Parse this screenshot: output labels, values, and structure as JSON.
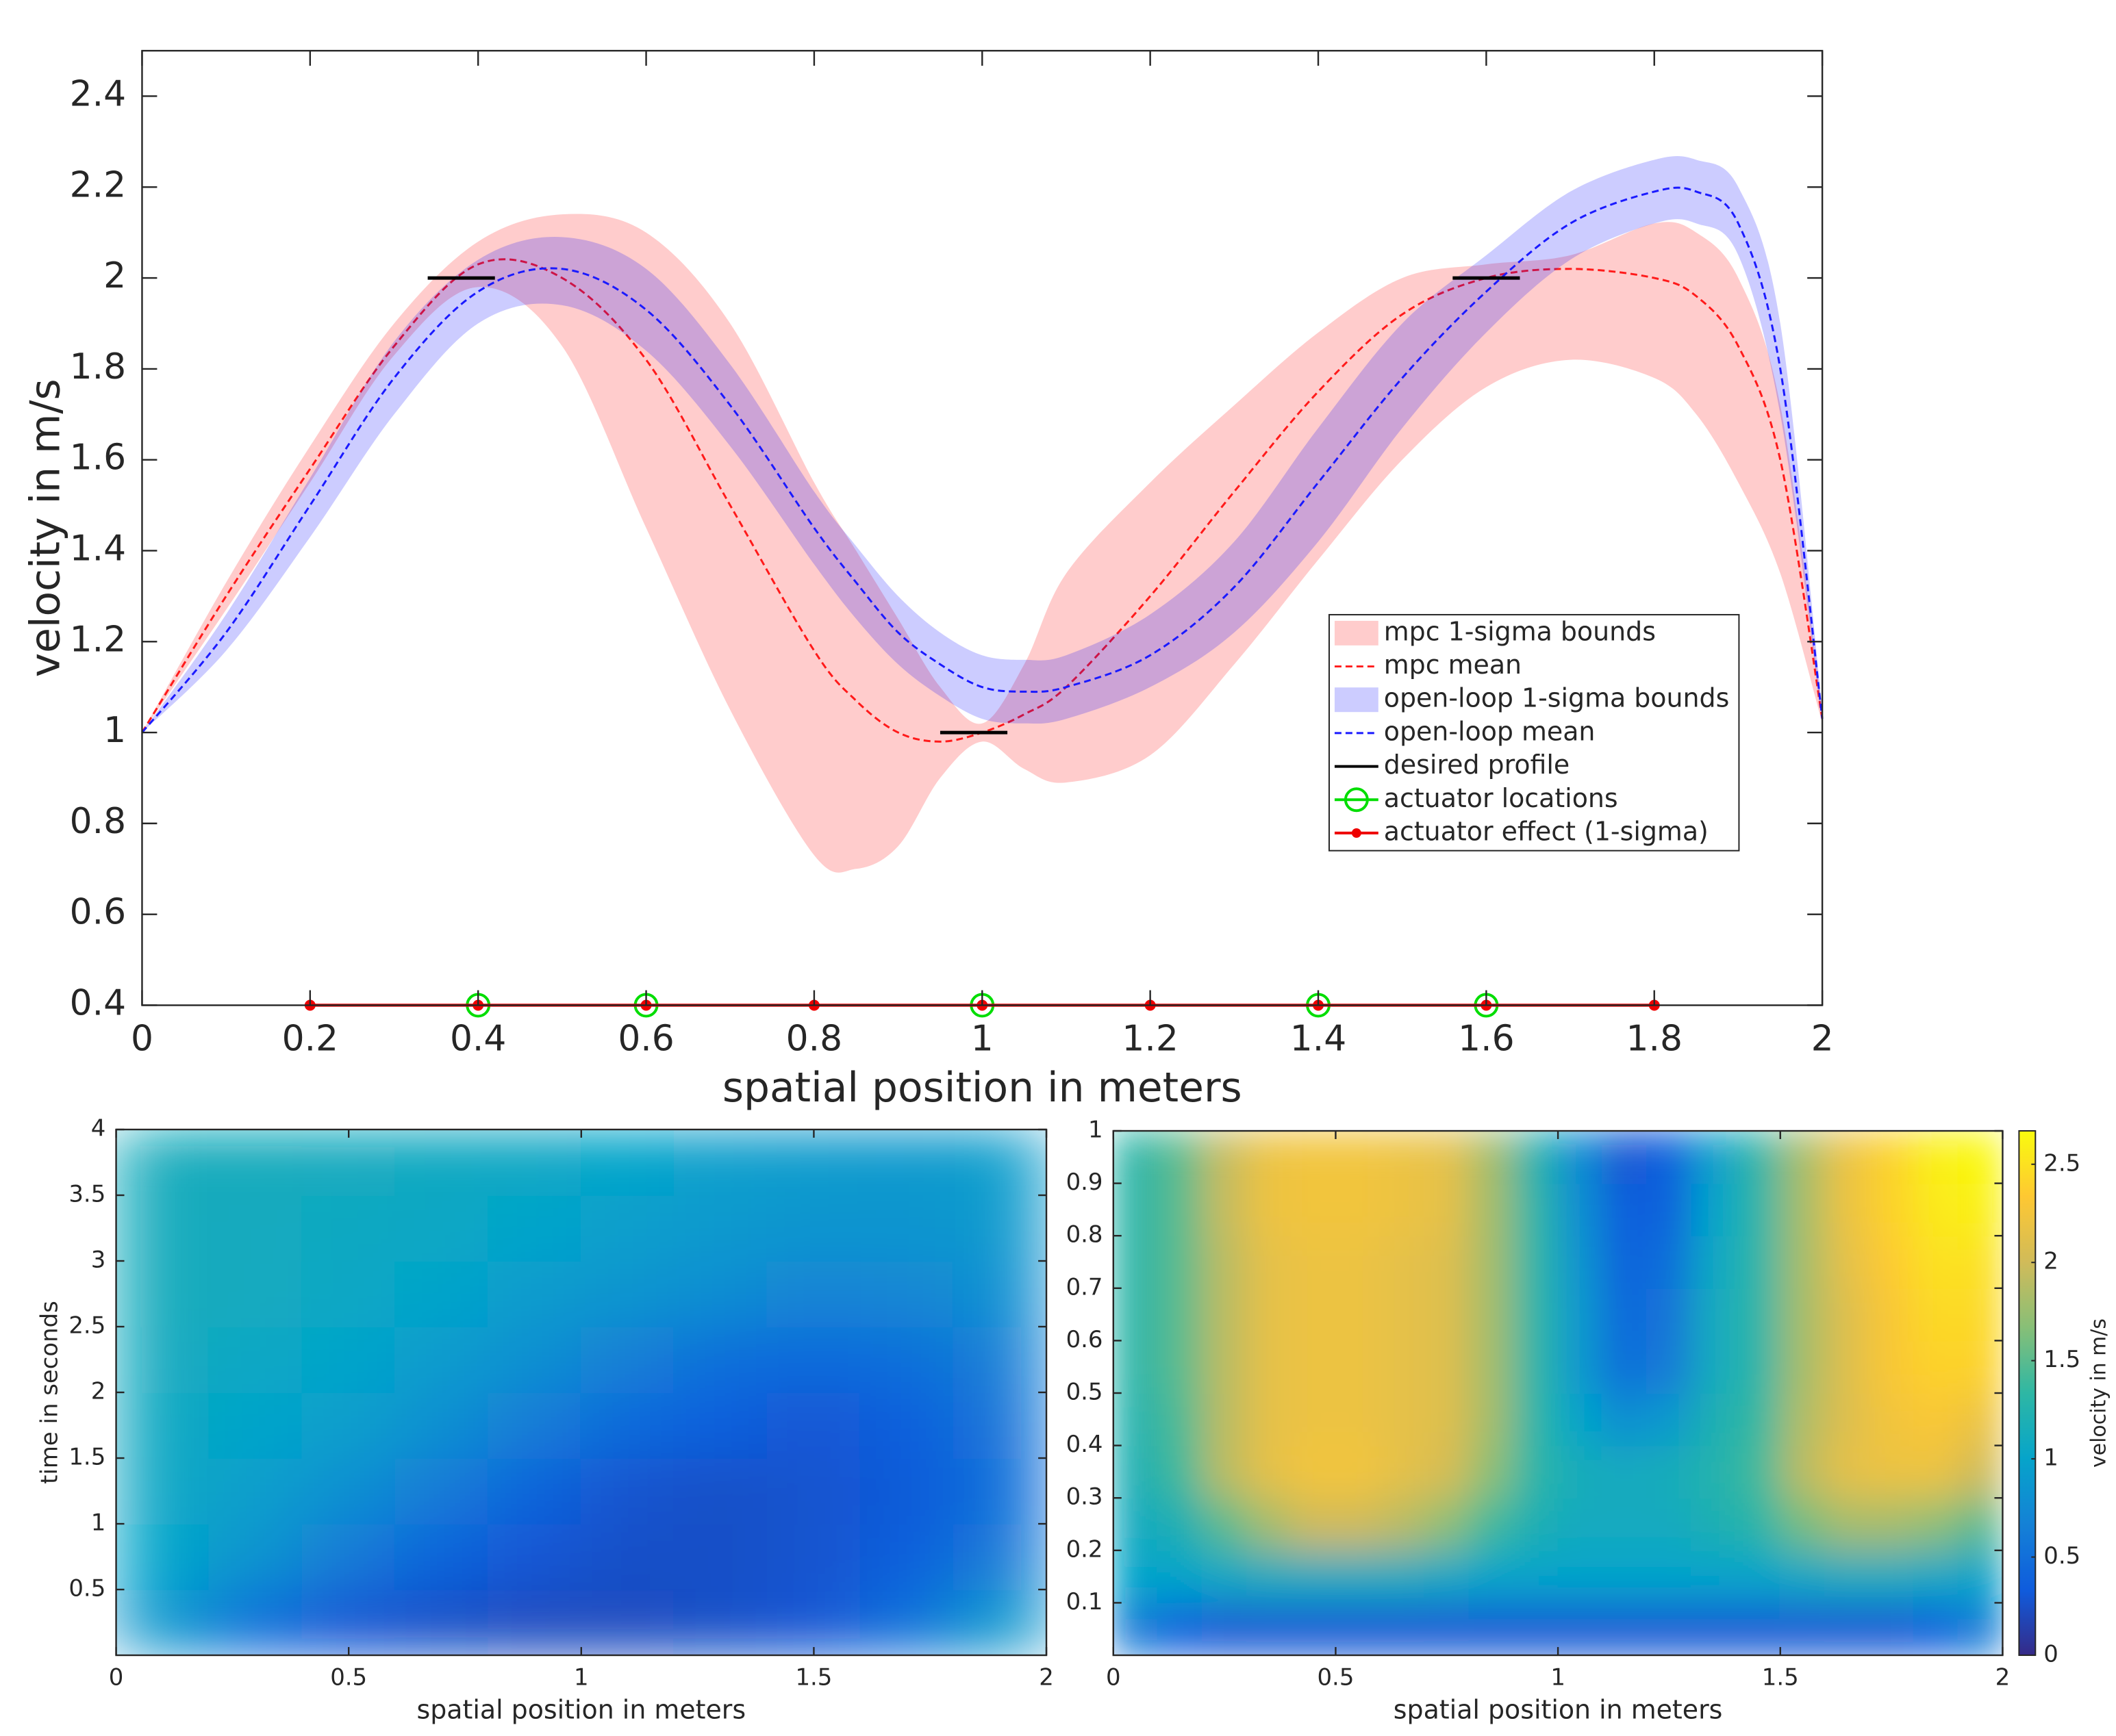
{
  "chart_data": [
    {
      "type": "line",
      "xlabel": "spatial position in meters",
      "ylabel": "velocity in m/s",
      "xlim": [
        0,
        2
      ],
      "ylim": [
        0.4,
        2.5
      ],
      "xticks": [
        0,
        0.2,
        0.4,
        0.6,
        0.8,
        1,
        1.2,
        1.4,
        1.6,
        1.8,
        2
      ],
      "yticks": [
        0.4,
        0.6,
        0.8,
        1,
        1.2,
        1.4,
        1.6,
        1.8,
        2,
        2.2,
        2.4
      ],
      "grid": false,
      "legend": "east",
      "x": [
        0,
        0.1,
        0.2,
        0.3,
        0.4,
        0.5,
        0.6,
        0.7,
        0.8,
        0.85,
        0.9,
        0.95,
        1,
        1.05,
        1.1,
        1.2,
        1.3,
        1.4,
        1.5,
        1.6,
        1.7,
        1.8,
        1.85,
        1.9,
        1.95,
        2
      ],
      "series": [
        {
          "name": "mpc 1-sigma bounds",
          "kind": "band",
          "color": "#ff0000",
          "alpha": 0.2,
          "lower": [
            1.0,
            1.27,
            1.55,
            1.83,
            1.98,
            1.85,
            1.45,
            1.05,
            0.73,
            0.7,
            0.75,
            0.9,
            0.98,
            0.92,
            0.89,
            0.95,
            1.15,
            1.38,
            1.6,
            1.76,
            1.82,
            1.78,
            1.7,
            1.55,
            1.35,
            1.02
          ],
          "upper": [
            1.0,
            1.33,
            1.63,
            1.9,
            2.08,
            2.14,
            2.1,
            1.9,
            1.55,
            1.4,
            1.25,
            1.1,
            1.02,
            1.15,
            1.35,
            1.55,
            1.72,
            1.88,
            2.0,
            2.03,
            2.05,
            2.12,
            2.1,
            2.0,
            1.72,
            1.05
          ]
        },
        {
          "name": "mpc mean",
          "kind": "line",
          "style": "dashed",
          "color": "#ff1a1a",
          "values": [
            1.0,
            1.3,
            1.58,
            1.85,
            2.03,
            2.0,
            1.82,
            1.5,
            1.18,
            1.07,
            1.0,
            0.98,
            1.0,
            1.04,
            1.1,
            1.3,
            1.53,
            1.75,
            1.92,
            2.0,
            2.02,
            2.0,
            1.96,
            1.85,
            1.6,
            1.03
          ]
        },
        {
          "name": "open-loop 1-sigma bounds",
          "kind": "band",
          "color": "#0000ff",
          "alpha": 0.2,
          "lower": [
            1.0,
            1.18,
            1.43,
            1.7,
            1.9,
            1.94,
            1.84,
            1.63,
            1.37,
            1.25,
            1.15,
            1.08,
            1.03,
            1.02,
            1.03,
            1.1,
            1.22,
            1.42,
            1.67,
            1.88,
            2.04,
            2.12,
            2.12,
            2.05,
            1.7,
            1.02
          ],
          "upper": [
            1.0,
            1.26,
            1.56,
            1.86,
            2.04,
            2.09,
            2.02,
            1.81,
            1.53,
            1.41,
            1.3,
            1.22,
            1.17,
            1.16,
            1.17,
            1.26,
            1.42,
            1.67,
            1.9,
            2.05,
            2.19,
            2.26,
            2.26,
            2.2,
            1.9,
            1.05
          ]
        },
        {
          "name": "open-loop mean",
          "kind": "line",
          "style": "dashed",
          "color": "#1a1aff",
          "values": [
            1.0,
            1.22,
            1.5,
            1.78,
            1.97,
            2.02,
            1.93,
            1.72,
            1.45,
            1.33,
            1.22,
            1.15,
            1.1,
            1.09,
            1.1,
            1.17,
            1.32,
            1.55,
            1.78,
            1.97,
            2.12,
            2.19,
            2.19,
            2.12,
            1.8,
            1.03
          ]
        },
        {
          "name": "desired profile",
          "kind": "segments",
          "color": "#000000",
          "segments": [
            {
              "x": [
                0.34,
                0.42
              ],
              "y": 2
            },
            {
              "x": [
                0.95,
                1.03
              ],
              "y": 1
            },
            {
              "x": [
                1.56,
                1.64
              ],
              "y": 2
            }
          ]
        },
        {
          "name": "actuator locations",
          "kind": "markers",
          "marker": "circle",
          "color": "#00dd00",
          "x": [
            0.4,
            0.6,
            1,
            1.4,
            1.6
          ],
          "values": [
            0.4,
            0.4,
            0.4,
            0.4,
            0.4
          ]
        },
        {
          "name": "actuator effect (1-sigma)",
          "kind": "line",
          "marker": "dot",
          "color": "#ee0000",
          "x": [
            0.2,
            0.4,
            0.6,
            0.8,
            1,
            1.2,
            1.4,
            1.6,
            1.8
          ],
          "values": [
            0.4,
            0.4,
            0.4,
            0.4,
            0.4,
            0.4,
            0.4,
            0.4,
            0.4
          ]
        }
      ]
    },
    {
      "type": "heatmap",
      "xlabel": "spatial position in meters",
      "ylabel": "time in seconds",
      "xlim": [
        0,
        2
      ],
      "ylim": [
        0,
        4
      ],
      "xticks": [
        0,
        0.5,
        1,
        1.5,
        2
      ],
      "yticks": [
        0.5,
        1,
        1.5,
        2,
        2.5,
        3,
        3.5,
        4
      ],
      "colormap": "parula",
      "clim": [
        0,
        2.67
      ],
      "x": [
        0.1,
        0.3,
        0.5,
        0.7,
        0.9,
        1.1,
        1.3,
        1.5,
        1.7,
        1.9
      ],
      "y": [
        0.25,
        0.75,
        1.25,
        1.75,
        2.25,
        2.75,
        3.25,
        3.75
      ],
      "values": [
        [
          0.9,
          0.5,
          0.3,
          0.25,
          0.22,
          0.22,
          0.25,
          0.3,
          0.5,
          0.9
        ],
        [
          1.0,
          0.85,
          0.6,
          0.4,
          0.3,
          0.25,
          0.25,
          0.28,
          0.35,
          0.6
        ],
        [
          1.05,
          0.95,
          0.8,
          0.6,
          0.4,
          0.28,
          0.25,
          0.28,
          0.32,
          0.5
        ],
        [
          1.08,
          1.0,
          0.95,
          0.8,
          0.62,
          0.45,
          0.35,
          0.3,
          0.35,
          0.55
        ],
        [
          1.1,
          1.05,
          1.0,
          0.92,
          0.8,
          0.65,
          0.5,
          0.45,
          0.5,
          0.65
        ],
        [
          1.12,
          1.1,
          1.05,
          1.0,
          0.92,
          0.85,
          0.78,
          0.7,
          0.72,
          0.8
        ],
        [
          1.12,
          1.1,
          1.08,
          1.05,
          1.0,
          0.95,
          0.9,
          0.85,
          0.85,
          0.9
        ],
        [
          1.12,
          1.12,
          1.1,
          1.08,
          1.05,
          1.0,
          0.95,
          0.92,
          0.9,
          0.95
        ]
      ]
    },
    {
      "type": "heatmap",
      "xlabel": "spatial position in meters",
      "xlim": [
        0,
        2
      ],
      "ylim": [
        0,
        1
      ],
      "xticks": [
        0,
        0.5,
        1,
        1.5,
        2
      ],
      "yticks": [
        0.1,
        0.2,
        0.3,
        0.4,
        0.5,
        0.6,
        0.7,
        0.8,
        0.9,
        1
      ],
      "colormap": "parula",
      "clim": [
        0,
        2.67
      ],
      "colorbar": {
        "label": "velocity in m/s",
        "ticks": [
          0,
          0.5,
          1,
          1.5,
          2,
          2.5
        ]
      },
      "x": [
        0.05,
        0.15,
        0.25,
        0.35,
        0.45,
        0.55,
        0.65,
        0.75,
        0.85,
        0.95,
        1.05,
        1.15,
        1.25,
        1.35,
        1.45,
        1.55,
        1.65,
        1.75,
        1.85,
        1.95
      ],
      "y": [
        0.05,
        0.15,
        0.25,
        0.35,
        0.45,
        0.55,
        0.65,
        0.75,
        0.85,
        0.95
      ],
      "values": [
        [
          0.6,
          0.35,
          0.3,
          0.3,
          0.3,
          0.3,
          0.3,
          0.3,
          0.3,
          0.3,
          0.3,
          0.3,
          0.3,
          0.3,
          0.3,
          0.3,
          0.3,
          0.3,
          0.35,
          0.6
        ],
        [
          1.0,
          1.0,
          1.05,
          1.1,
          1.1,
          1.1,
          1.1,
          1.05,
          1.0,
          1.0,
          1.0,
          1.0,
          1.0,
          1.0,
          1.0,
          1.05,
          1.1,
          1.1,
          1.05,
          1.0
        ],
        [
          1.1,
          1.2,
          1.5,
          1.8,
          2.0,
          2.0,
          1.9,
          1.7,
          1.4,
          1.2,
          1.1,
          1.1,
          1.1,
          1.2,
          1.3,
          1.6,
          1.8,
          1.8,
          1.7,
          1.5
        ],
        [
          1.2,
          1.4,
          1.9,
          2.15,
          2.25,
          2.25,
          2.15,
          2.05,
          1.7,
          1.3,
          1.15,
          1.1,
          1.15,
          1.25,
          1.4,
          1.9,
          2.15,
          2.2,
          2.2,
          2.0
        ],
        [
          1.25,
          1.45,
          1.9,
          2.15,
          2.2,
          2.2,
          2.15,
          2.1,
          1.8,
          1.3,
          1.0,
          0.8,
          0.9,
          1.2,
          1.35,
          1.85,
          2.1,
          2.25,
          2.3,
          2.2
        ],
        [
          1.3,
          1.5,
          1.9,
          2.15,
          2.2,
          2.2,
          2.15,
          2.1,
          1.8,
          1.3,
          0.9,
          0.5,
          0.6,
          1.1,
          1.3,
          1.8,
          2.1,
          2.3,
          2.4,
          2.4
        ],
        [
          1.3,
          1.5,
          1.9,
          2.15,
          2.2,
          2.2,
          2.15,
          2.1,
          1.8,
          1.3,
          0.9,
          0.45,
          0.55,
          1.1,
          1.3,
          1.8,
          2.1,
          2.3,
          2.45,
          2.45
        ],
        [
          1.3,
          1.5,
          1.9,
          2.15,
          2.2,
          2.2,
          2.15,
          2.1,
          1.8,
          1.3,
          0.85,
          0.4,
          0.5,
          1.05,
          1.3,
          1.8,
          2.15,
          2.35,
          2.5,
          2.5
        ],
        [
          1.3,
          1.5,
          1.95,
          2.2,
          2.25,
          2.25,
          2.2,
          2.15,
          1.8,
          1.3,
          0.8,
          0.35,
          0.4,
          1.0,
          1.3,
          1.8,
          2.2,
          2.4,
          2.55,
          2.6
        ],
        [
          1.3,
          1.5,
          1.95,
          2.2,
          2.25,
          2.25,
          2.2,
          2.15,
          1.8,
          1.25,
          0.75,
          0.3,
          0.35,
          0.95,
          1.3,
          1.8,
          2.2,
          2.4,
          2.6,
          2.65
        ]
      ]
    }
  ]
}
